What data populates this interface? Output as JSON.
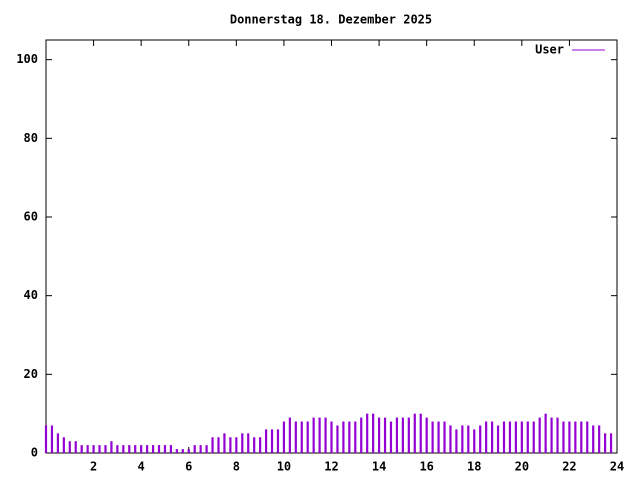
{
  "chart_data": {
    "type": "impulse",
    "title": "Donnerstag 18. Dezember 2025",
    "x": [
      0,
      0.25,
      0.5,
      0.75,
      1,
      1.25,
      1.5,
      1.75,
      2,
      2.25,
      2.5,
      2.75,
      3,
      3.25,
      3.5,
      3.75,
      4,
      4.25,
      4.5,
      4.75,
      5,
      5.25,
      5.5,
      5.75,
      6,
      6.25,
      6.5,
      6.75,
      7,
      7.25,
      7.5,
      7.75,
      8,
      8.25,
      8.5,
      8.75,
      9,
      9.25,
      9.5,
      9.75,
      10,
      10.25,
      10.5,
      10.75,
      11,
      11.25,
      11.5,
      11.75,
      12,
      12.25,
      12.5,
      12.75,
      13,
      13.25,
      13.5,
      13.75,
      14,
      14.25,
      14.5,
      14.75,
      15,
      15.25,
      15.5,
      15.75,
      16,
      16.25,
      16.5,
      16.75,
      17,
      17.25,
      17.5,
      17.75,
      18,
      18.25,
      18.5,
      18.75,
      19,
      19.25,
      19.5,
      19.75,
      20,
      20.25,
      20.5,
      20.75,
      21,
      21.25,
      21.5,
      21.75,
      22,
      22.25,
      22.5,
      22.75,
      23,
      23.25,
      23.5,
      23.75
    ],
    "series": [
      {
        "name": "User",
        "color": "#9400d3",
        "values": [
          7,
          7,
          5,
          4,
          3,
          3,
          2,
          2,
          2,
          2,
          2,
          3,
          2,
          2,
          2,
          2,
          2,
          2,
          2,
          2,
          2,
          2,
          1,
          1,
          1,
          2,
          2,
          2,
          4,
          4,
          5,
          4,
          4,
          5,
          5,
          4,
          4,
          6,
          6,
          6,
          8,
          9,
          8,
          8,
          8,
          9,
          9,
          9,
          8,
          7,
          8,
          8,
          8,
          9,
          10,
          10,
          9,
          9,
          8,
          9,
          9,
          9,
          10,
          10,
          9,
          8,
          8,
          8,
          7,
          6,
          7,
          7,
          6,
          7,
          8,
          8,
          7,
          8,
          8,
          8,
          8,
          8,
          8,
          9,
          10,
          9,
          9,
          8,
          8,
          8,
          8,
          8,
          7,
          7,
          5,
          5
        ]
      }
    ],
    "xlim": [
      0,
      24
    ],
    "xticks": [
      2,
      4,
      6,
      8,
      10,
      12,
      14,
      16,
      18,
      20,
      22,
      24
    ],
    "ylim": [
      0,
      105
    ],
    "yticks": [
      0,
      20,
      40,
      60,
      80,
      100
    ],
    "legend": "upper right"
  }
}
